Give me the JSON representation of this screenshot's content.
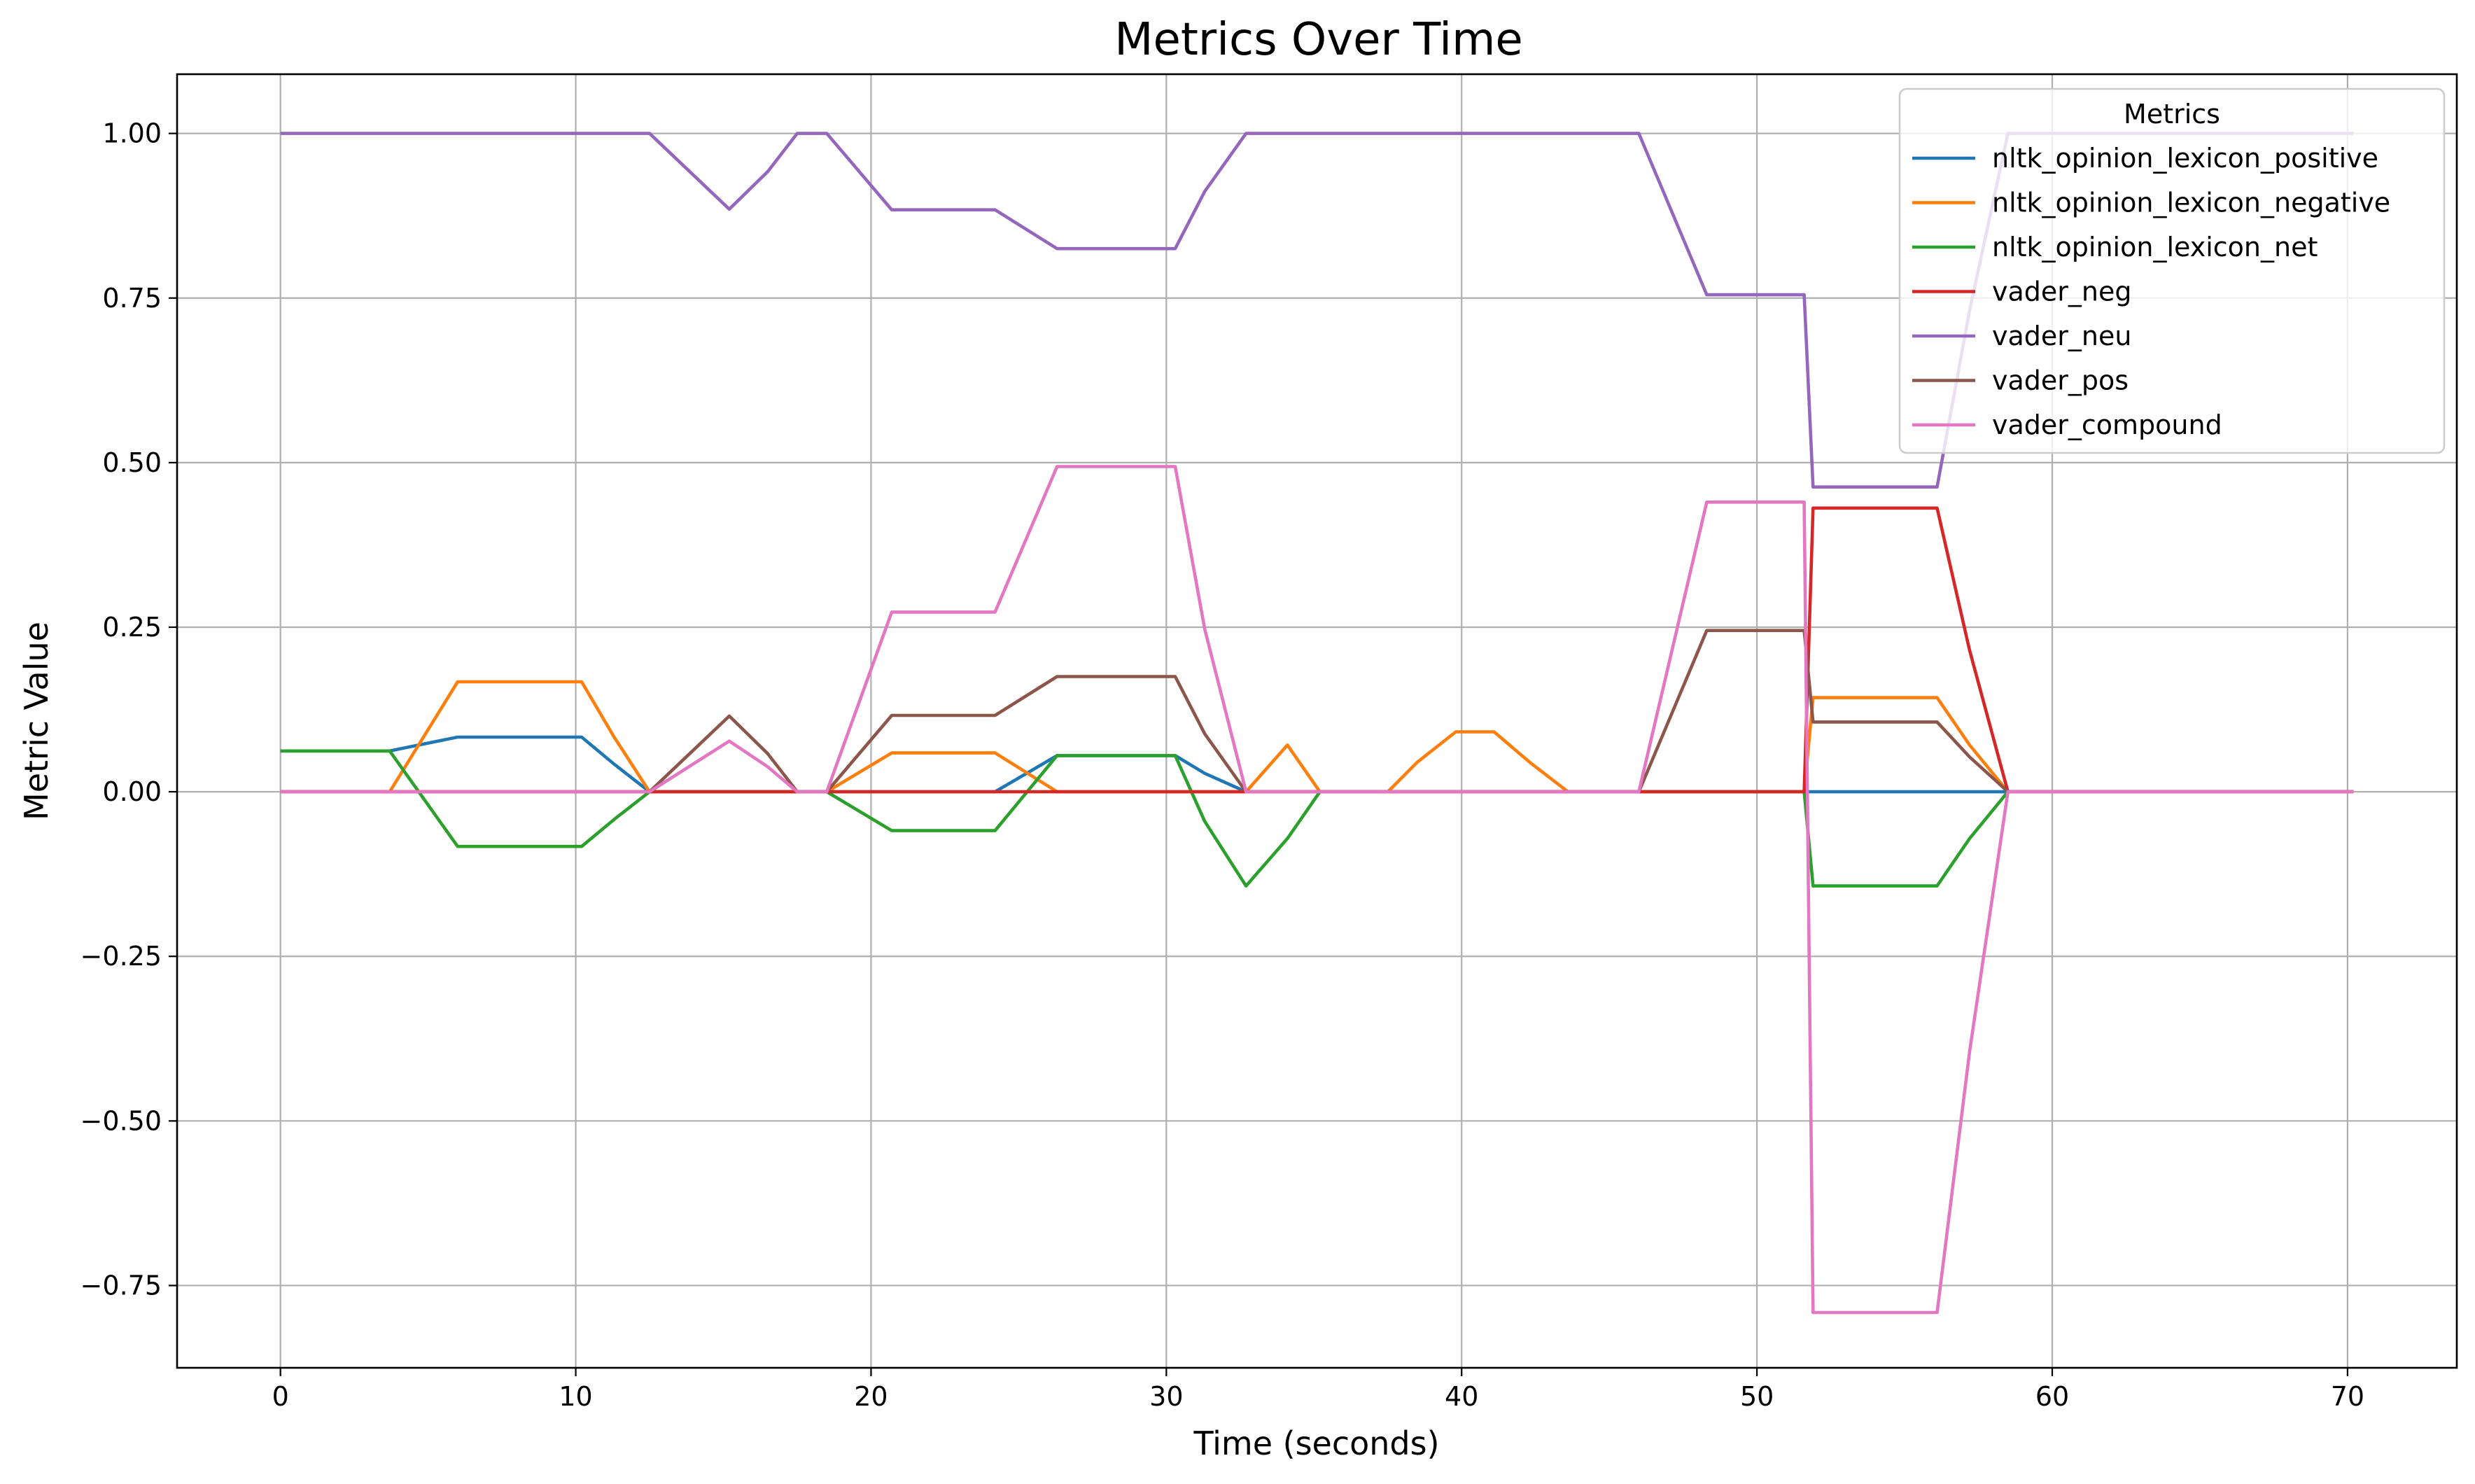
{
  "chart_data": {
    "type": "line",
    "title": "Metrics Over Time",
    "xlabel": "Time (seconds)",
    "ylabel": "Metric Value",
    "xlim": [
      -3.5,
      73.7
    ],
    "ylim": [
      -0.875,
      1.09
    ],
    "xticks": [
      0,
      10,
      20,
      30,
      40,
      50,
      60,
      70
    ],
    "xtick_labels": [
      "0",
      "10",
      "20",
      "30",
      "40",
      "50",
      "60",
      "70"
    ],
    "yticks": [
      -0.75,
      -0.5,
      -0.25,
      0.0,
      0.25,
      0.5,
      0.75,
      1.0
    ],
    "ytick_labels": [
      "−0.75",
      "−0.50",
      "−0.25",
      "0.00",
      "0.25",
      "0.50",
      "0.75",
      "1.00"
    ],
    "grid": true,
    "legend": {
      "title": "Metrics",
      "position": "top-right"
    },
    "series": [
      {
        "name": "nltk_opinion_lexicon_positive",
        "color": "#1f77b4",
        "x": [
          0,
          3.7,
          6,
          10.2,
          11.3,
          12.5,
          24.2,
          26.3,
          30.3,
          31.3,
          32.7,
          70.2
        ],
        "y": [
          0.062,
          0.062,
          0.083,
          0.083,
          0.042,
          0,
          0,
          0.055,
          0.055,
          0.028,
          0,
          0
        ]
      },
      {
        "name": "nltk_opinion_lexicon_negative",
        "color": "#ff7f0e",
        "x": [
          0,
          3.7,
          6,
          10.2,
          11.3,
          12.5,
          18.5,
          20.7,
          24.2,
          26.3,
          32.7,
          34.1,
          35.2,
          37.5,
          38.5,
          39.8,
          41.1,
          42.3,
          43.6,
          51.6,
          51.9,
          56.1,
          57.2,
          58.5,
          70.2
        ],
        "y": [
          0,
          0,
          0.167,
          0.167,
          0.083,
          0,
          0,
          0.059,
          0.059,
          0,
          0,
          0.071,
          0,
          0,
          0.045,
          0.091,
          0.091,
          0.045,
          0,
          0,
          0.143,
          0.143,
          0.071,
          0,
          0
        ]
      },
      {
        "name": "nltk_opinion_lexicon_net",
        "color": "#2ca02c",
        "x": [
          0,
          3.7,
          6,
          10.2,
          11.3,
          12.5,
          18.5,
          20.7,
          24.2,
          26.3,
          30.3,
          31.3,
          32.7,
          34.1,
          35.2,
          51.6,
          51.9,
          56.1,
          57.2,
          58.5,
          70.2
        ],
        "y": [
          0.062,
          0.062,
          -0.083,
          -0.083,
          -0.042,
          0,
          0,
          -0.059,
          -0.059,
          0.055,
          0.055,
          -0.045,
          -0.143,
          -0.071,
          0,
          0,
          -0.143,
          -0.143,
          -0.071,
          0,
          0
        ]
      },
      {
        "name": "vader_neg",
        "color": "#d62728",
        "x": [
          0,
          51.6,
          51.9,
          56.1,
          57.2,
          58.5,
          70.2
        ],
        "y": [
          0,
          0,
          0.431,
          0.431,
          0.215,
          0,
          0
        ]
      },
      {
        "name": "vader_neu",
        "color": "#9467bd",
        "x": [
          0,
          12.5,
          15.2,
          16.5,
          17.5,
          18.5,
          20.7,
          24.2,
          26.3,
          30.3,
          31.3,
          32.7,
          46.0,
          48.3,
          51.6,
          51.9,
          56.1,
          57.2,
          58.5,
          70.2
        ],
        "y": [
          1.0,
          1.0,
          0.885,
          0.942,
          1.0,
          1.0,
          0.884,
          0.884,
          0.825,
          0.825,
          0.912,
          1.0,
          1.0,
          0.755,
          0.755,
          0.463,
          0.463,
          0.731,
          1.0,
          1.0
        ]
      },
      {
        "name": "vader_pos",
        "color": "#8c564b",
        "x": [
          0,
          12.5,
          15.2,
          16.5,
          17.5,
          18.5,
          20.7,
          24.2,
          26.3,
          30.3,
          31.3,
          32.7,
          46.0,
          48.3,
          51.6,
          51.9,
          56.1,
          57.2,
          58.5,
          70.2
        ],
        "y": [
          0,
          0,
          0.115,
          0.058,
          0,
          0,
          0.116,
          0.116,
          0.175,
          0.175,
          0.088,
          0,
          0,
          0.245,
          0.245,
          0.106,
          0.106,
          0.053,
          0,
          0
        ]
      },
      {
        "name": "vader_compound",
        "color": "#e377c2",
        "x": [
          0,
          12.5,
          15.2,
          16.5,
          17.5,
          18.5,
          20.7,
          24.2,
          26.3,
          30.3,
          31.3,
          32.7,
          46.0,
          48.3,
          51.6,
          51.9,
          56.1,
          57.2,
          58.5,
          70.2
        ],
        "y": [
          0,
          0,
          0.077,
          0.038,
          0,
          0,
          0.273,
          0.273,
          0.494,
          0.494,
          0.247,
          0,
          0,
          0.44,
          0.44,
          -0.791,
          -0.791,
          -0.395,
          0,
          0
        ]
      }
    ]
  }
}
